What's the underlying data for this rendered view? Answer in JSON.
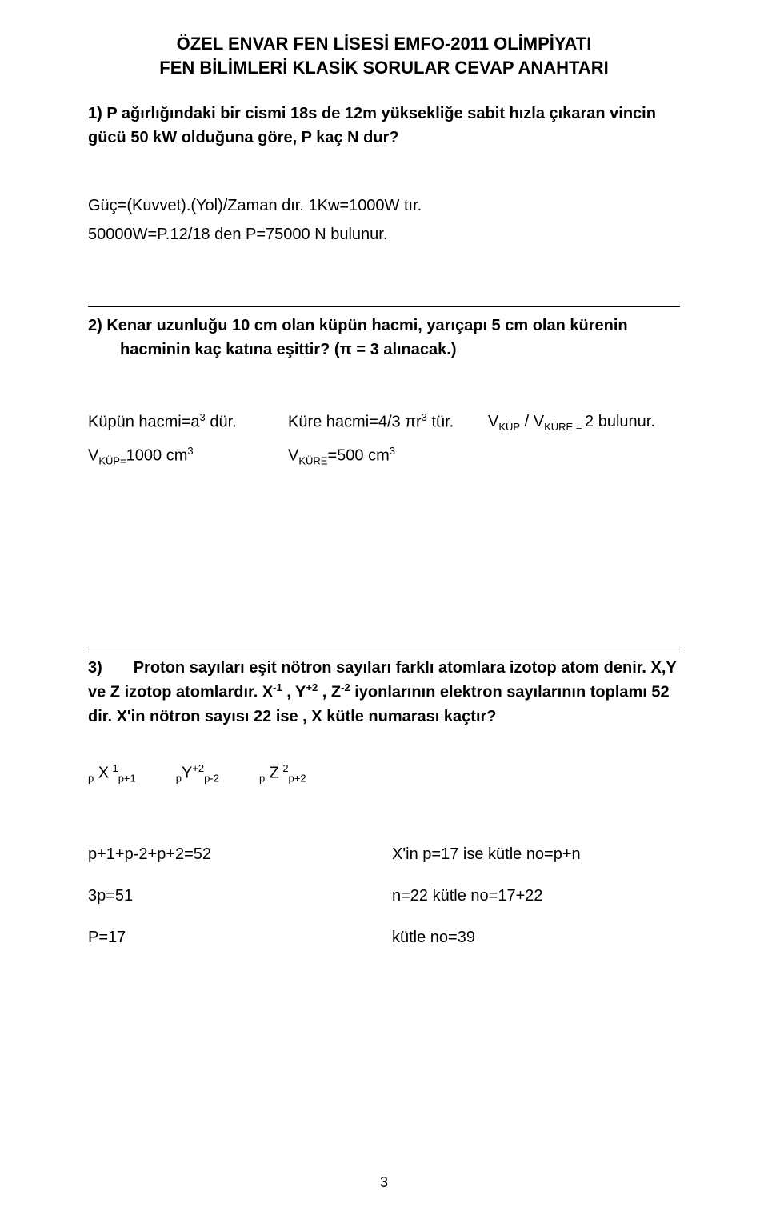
{
  "header": {
    "line1": "ÖZEL ENVAR FEN LİSESİ EMFO-2011 OLİMPİYATI",
    "line2": "FEN BİLİMLERİ KLASİK SORULAR CEVAP ANAHTARI"
  },
  "q1": {
    "text": "1) P ağırlığındaki bir cismi 18s de 12m yüksekliğe sabit hızla çıkaran vincin gücü 50 kW olduğuna göre, P kaç N dur?",
    "ans_line1": "Güç=(Kuvvet).(Yol)/Zaman  dır.   1Kw=1000W tır.",
    "ans_line2": "50000W=P.12/18  den  P=75000 N bulunur."
  },
  "q2": {
    "text": "2) Kenar uzunluğu 10 cm olan küpün hacmi, yarıçapı 5 cm olan kürenin hacminin kaç katına eşittir? (π = 3 alınacak.)",
    "row1": {
      "c1_pre": "Küpün hacmi=a",
      "c1_sup": "3",
      "c1_post": " dür.",
      "c2_pre": "Küre hacmi=4/3 πr",
      "c2_sup": "3",
      "c2_post": " tür.",
      "c3_pre": "V",
      "c3_sub1": "KÜP",
      "c3_mid": " / V",
      "c3_sub2": "KÜRE = ",
      "c3_post": "2 bulunur."
    },
    "row2": {
      "c1_v": "V",
      "c1_sub": "KÜP=",
      "c1_val": "1000 cm",
      "c1_sup": "3",
      "c2_v": "V",
      "c2_sub": "KÜRE",
      "c2_val": "=500 cm",
      "c2_sup": "3"
    }
  },
  "q3": {
    "text_a": "3)",
    "text_b": "Proton sayıları eşit nötron sayıları farklı atomlara izotop atom denir. X,Y ve Z izotop atomlardır. X",
    "sup1": "-1",
    "text_c": " , Y",
    "sup2": "+2",
    "text_d": " , Z",
    "sup3": "-2",
    "text_e": " iyonlarının elektron sayılarının toplamı 52 dir. X'in nötron sayısı 22 ise , X kütle numarası kaçtır?",
    "ions": {
      "p1": "p",
      "x": " X",
      "x_sup": "-1",
      "x_sub": "p+1",
      "p2": "p",
      "y": "Y",
      "y_sup": "+2",
      "y_sub": "p-2",
      "p3": "p",
      "z": " Z",
      "z_sup": "-2",
      "z_sub": "p+2"
    },
    "eq1": {
      "left": "p+1+p-2+p+2=52",
      "right": "X'in   p=17    ise  kütle no=p+n"
    },
    "eq2": {
      "left": "3p=51",
      "right": "n=22        kütle no=17+22"
    },
    "eq3": {
      "left": "P=17",
      "right": "kütle no=39"
    }
  },
  "page_number": "3"
}
